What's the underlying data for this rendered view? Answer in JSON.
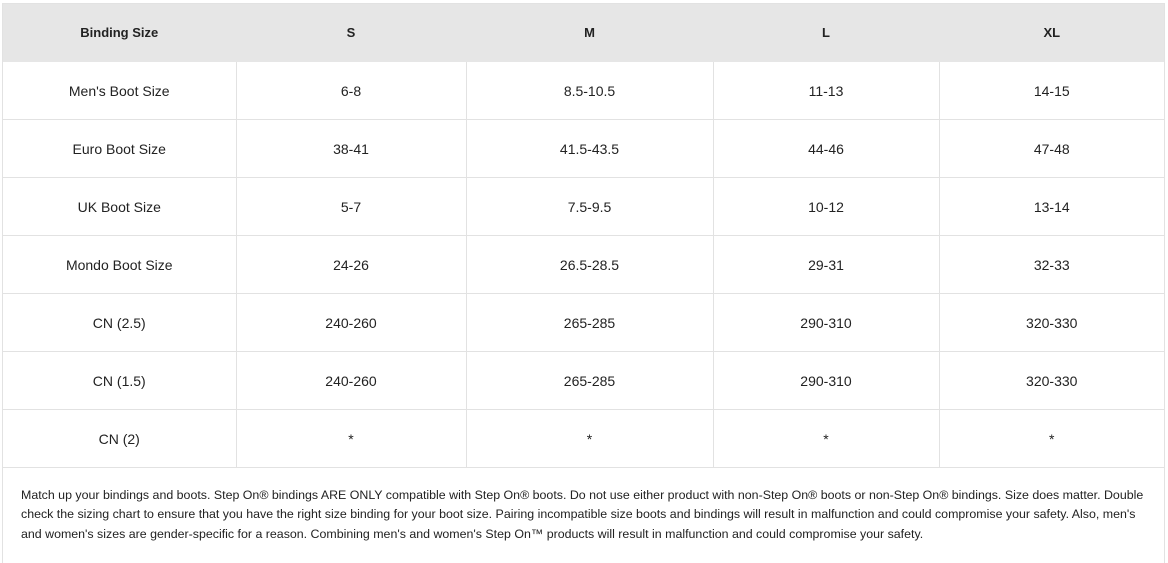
{
  "table": {
    "header": [
      "Binding Size",
      "S",
      "M",
      "L",
      "XL"
    ],
    "rows": [
      [
        "Men's Boot Size",
        "6-8",
        "8.5-10.5",
        "11-13",
        "14-15"
      ],
      [
        "Euro Boot Size",
        "38-41",
        "41.5-43.5",
        "44-46",
        "47-48"
      ],
      [
        "UK Boot Size",
        "5-7",
        "7.5-9.5",
        "10-12",
        "13-14"
      ],
      [
        "Mondo Boot Size",
        "24-26",
        "26.5-28.5",
        "29-31",
        "32-33"
      ],
      [
        "CN (2.5)",
        "240-260",
        "265-285",
        "290-310",
        "320-330"
      ],
      [
        "CN (1.5)",
        "240-260",
        "265-285",
        "290-310",
        "320-330"
      ],
      [
        "CN (2)",
        "*",
        "*",
        "*",
        "*"
      ]
    ]
  },
  "note": "Match up your bindings and boots. Step On® bindings ARE ONLY compatible with Step On® boots. Do not use either product with non-Step On® boots or non-Step On® bindings. Size does matter. Double check the sizing chart to ensure that you have the right size binding for your boot size. Pairing incompatible size boots and bindings will result in malfunction and could compromise your safety. Also, men's and women's sizes are gender-specific for a reason. Combining men's and women's Step On™ products will result in malfunction and could compromise your safety."
}
